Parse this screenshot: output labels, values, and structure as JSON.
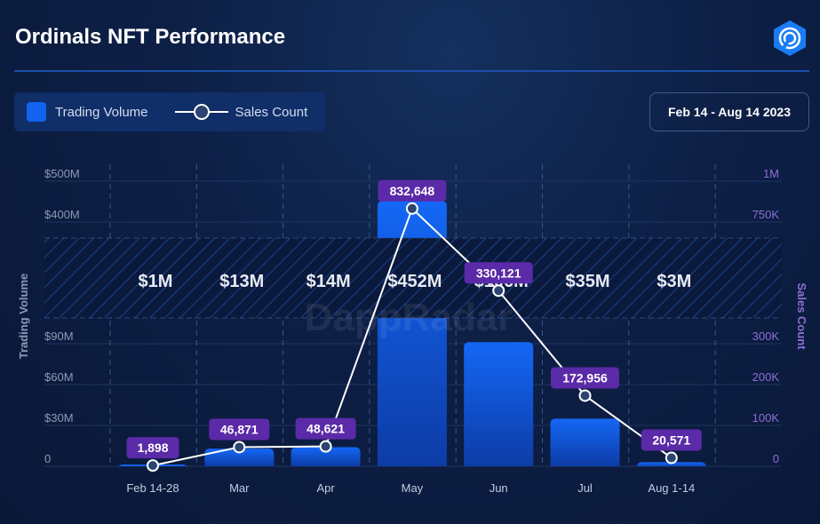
{
  "header": {
    "title": "Ordinals NFT Performance",
    "date_range": "Feb 14 - Aug 14 2023",
    "logo": "dappradar-logo-icon"
  },
  "legend": {
    "trading_volume": "Trading Volume",
    "sales_count": "Sales Count"
  },
  "watermark": "DappRadar",
  "colors": {
    "bar": "#1463f0",
    "label_bg": "#5b2aa8",
    "line": "#ffffff"
  },
  "chart_data": {
    "type": "bar",
    "title": "Ordinals NFT Performance",
    "categories": [
      "Feb 14-28",
      "Mar",
      "Apr",
      "May",
      "Jun",
      "Jul",
      "Aug 1-14"
    ],
    "series": [
      {
        "name": "Trading Volume",
        "type": "bar",
        "axis": "left",
        "values": [
          1,
          13,
          14,
          452,
          106,
          35,
          3
        ],
        "labels": [
          "$1M",
          "$13M",
          "$14M",
          "$452M",
          "$106M",
          "$35M",
          "$3M"
        ]
      },
      {
        "name": "Sales Count",
        "type": "line",
        "axis": "right",
        "values": [
          1898,
          46871,
          48621,
          832648,
          330121,
          172956,
          20571
        ],
        "labels": [
          "1,898",
          "46,871",
          "48,621",
          "832,648",
          "330,121",
          "172,956",
          "20,571"
        ]
      }
    ],
    "ylabel": "Trading Volume",
    "y2label": "Sales Count",
    "yticks": [
      "0",
      "$30M",
      "$60M",
      "$90M",
      "$400M",
      "$500M"
    ],
    "y2ticks": [
      "0",
      "100K",
      "200K",
      "300K",
      "750K",
      "1M"
    ],
    "axis_break": true,
    "grid": true,
    "legend_position": "top-left"
  }
}
